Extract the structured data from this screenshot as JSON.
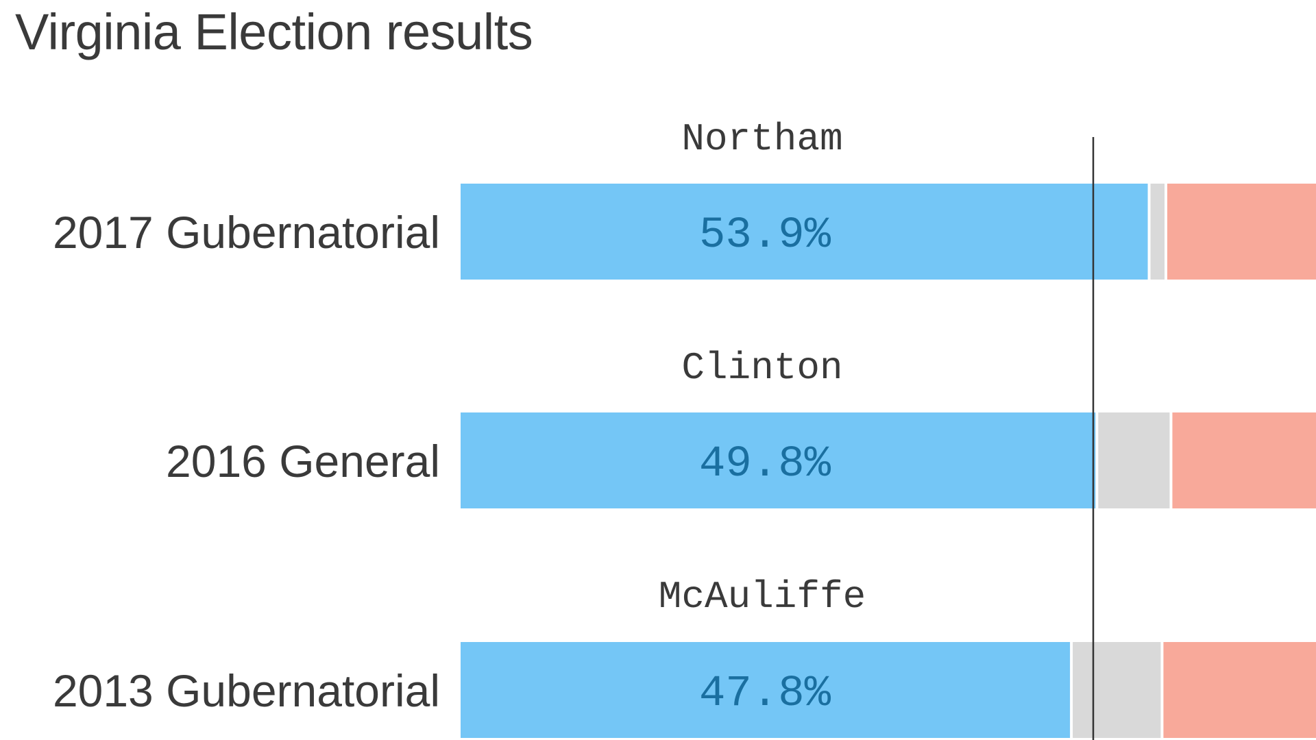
{
  "chart_data": {
    "type": "bar",
    "title": "Virginia Election results",
    "layout": "stacked-horizontal",
    "midline_value": 50,
    "colors": {
      "democrat": "#74c6f6",
      "other": "#d9d9d9",
      "republican": "#f8a99a",
      "value_text": "#1a6fa0",
      "midline": "#333333"
    },
    "rows": [
      {
        "category": "2017 Gubernatorial",
        "democrat_name": "Northam",
        "democrat_value": 53.9,
        "democrat_label": "53.9%",
        "other_value": 1.1
      },
      {
        "category": "2016 General",
        "democrat_name": "Clinton",
        "democrat_value": 49.8,
        "democrat_label": "49.8%",
        "other_value": 5.6
      },
      {
        "category": "2013 Gubernatorial",
        "democrat_name": "McAuliffe",
        "democrat_value": 47.8,
        "democrat_label": "47.8%",
        "other_value": 6.9
      }
    ]
  }
}
